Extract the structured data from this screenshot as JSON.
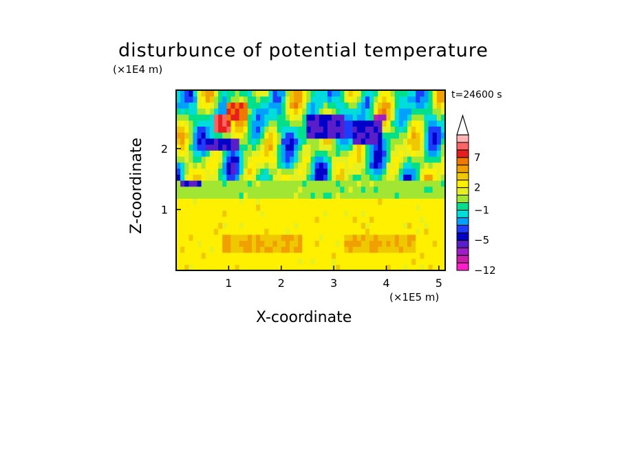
{
  "chart_data": {
    "type": "heatmap",
    "title": "disturbunce of potential temperature",
    "xlabel": "X-coordinate",
    "ylabel": "Z-coordinate",
    "x_unit": "(×1E5 m)",
    "y_unit": "(×1E4 m)",
    "time_label": "t=24600 s",
    "xlim": [
      0,
      5.12
    ],
    "ylim": [
      0,
      2.96
    ],
    "x_ticks": [
      "1",
      "2",
      "3",
      "4",
      "5"
    ],
    "y_ticks": [
      "1",
      "2"
    ],
    "colorbar": {
      "levels": [
        -12,
        -10,
        -8,
        -7,
        -5,
        -4,
        -3,
        -2,
        -1,
        0,
        1,
        2,
        3,
        4,
        5,
        7,
        9,
        11
      ],
      "labels": [
        "7",
        "2",
        "−1",
        "−5",
        "−12"
      ],
      "label_values": [
        7,
        2,
        -1,
        -5,
        -12
      ],
      "colors": [
        "#ff1ec8",
        "#c81ea8",
        "#a01ec8",
        "#5a1ec8",
        "#0000c8",
        "#1e3cff",
        "#00a0ff",
        "#00dcdc",
        "#00e08a",
        "#a0e632",
        "#e6f020",
        "#fff000",
        "#f0c800",
        "#f0a000",
        "#f07800",
        "#e61e1e",
        "#ff6464",
        "#ffb4b4"
      ],
      "extend": "max"
    },
    "regions": [
      {
        "x": [
          0.0,
          5.12
        ],
        "z": [
          0.0,
          1.2
        ],
        "value": 2.5
      },
      {
        "x": [
          0.9,
          2.4
        ],
        "z": [
          0.3,
          0.6
        ],
        "value": 4
      },
      {
        "x": [
          3.2,
          4.6
        ],
        "z": [
          0.3,
          0.6
        ],
        "value": 4
      },
      {
        "x": [
          0.0,
          5.12
        ],
        "z": [
          1.2,
          1.45
        ],
        "value": 0.5
      },
      {
        "x": [
          0.7,
          1.0
        ],
        "z": [
          2.3,
          2.6
        ],
        "value": 9
      },
      {
        "x": [
          1.0,
          1.4
        ],
        "z": [
          2.5,
          2.8
        ],
        "value": 7
      },
      {
        "x": [
          0.6,
          1.2
        ],
        "z": [
          2.0,
          2.2
        ],
        "value": -5
      },
      {
        "x": [
          2.5,
          3.2
        ],
        "z": [
          2.2,
          2.6
        ],
        "value": -5
      },
      {
        "x": [
          3.4,
          3.9
        ],
        "z": [
          2.1,
          2.5
        ],
        "value": -5
      },
      {
        "x": [
          3.8,
          4.0
        ],
        "z": [
          2.45,
          2.6
        ],
        "value": -8
      },
      {
        "x": [
          0.05,
          0.5
        ],
        "z": [
          1.35,
          1.5
        ],
        "value": -5
      }
    ]
  }
}
